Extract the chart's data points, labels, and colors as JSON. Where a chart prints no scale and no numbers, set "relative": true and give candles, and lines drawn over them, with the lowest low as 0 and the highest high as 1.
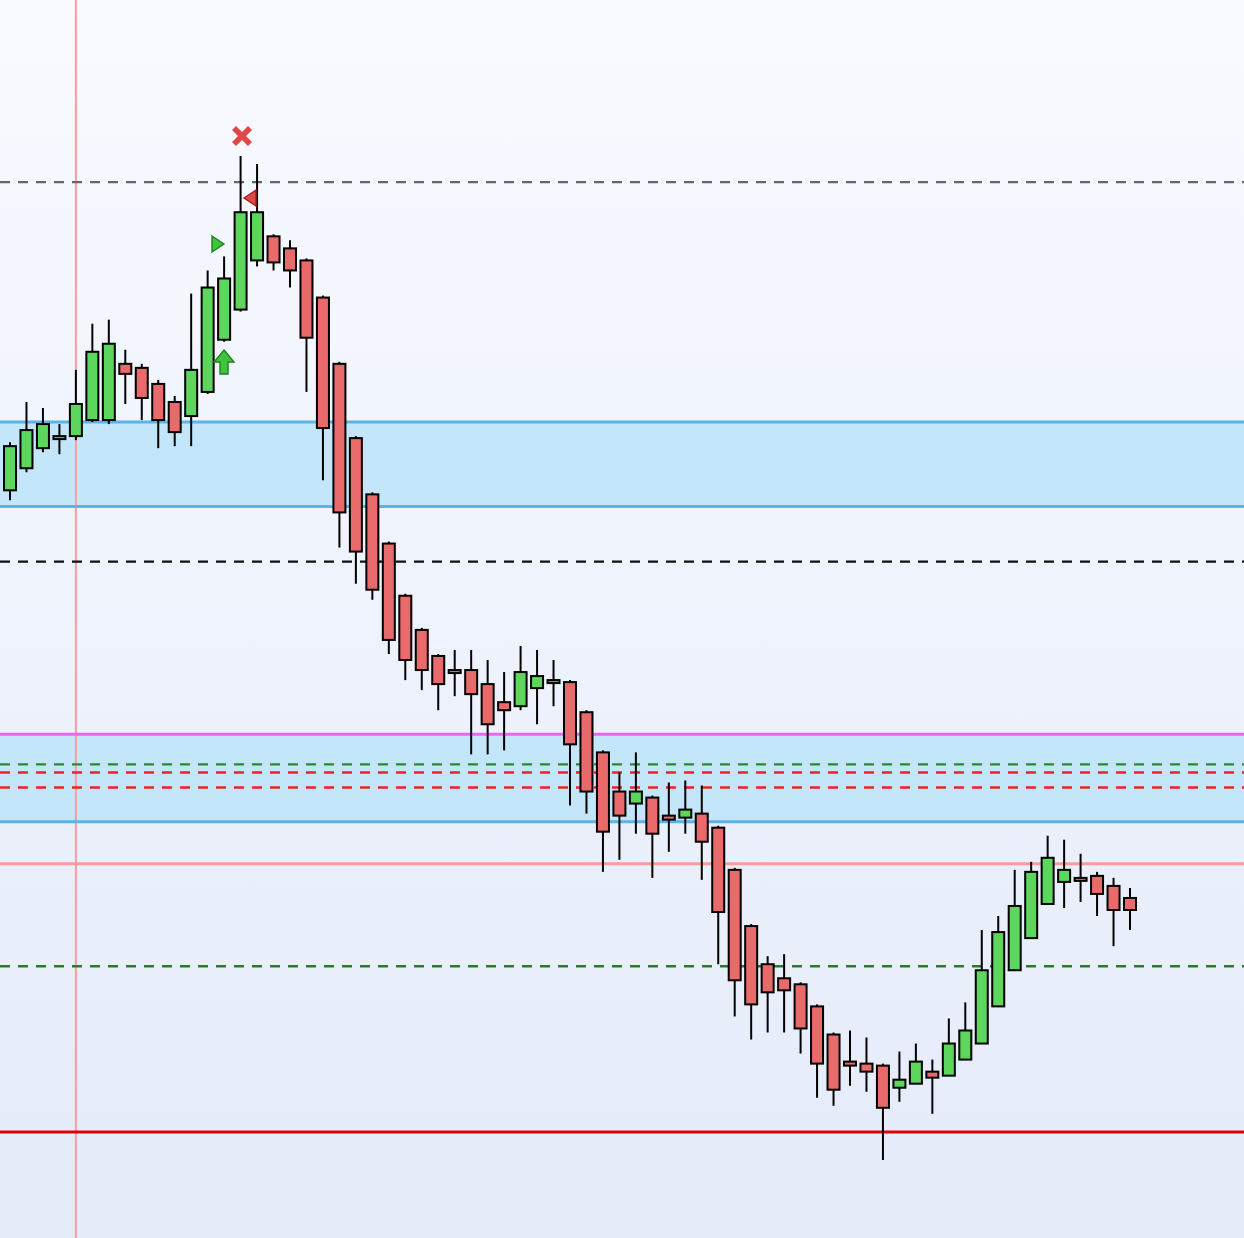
{
  "chart_data": {
    "type": "candlestick",
    "relative": true,
    "categories": [
      null,
      null,
      null,
      null,
      null,
      null,
      null,
      null,
      null,
      null,
      null,
      null,
      null,
      null,
      null,
      null,
      null,
      null,
      null,
      null,
      null,
      null,
      null,
      null,
      null,
      null,
      null,
      null,
      null,
      null,
      null,
      null,
      null,
      null,
      null,
      null,
      null,
      null,
      null,
      null,
      null,
      null,
      null,
      null,
      null,
      null,
      null,
      null,
      null,
      null,
      null,
      null,
      null,
      null,
      null,
      null,
      null,
      null,
      null,
      null,
      null,
      null,
      null,
      null,
      null,
      null,
      null,
      null,
      null
    ],
    "ohlc": [
      [
        0.667,
        0.715,
        0.657,
        0.711
      ],
      [
        0.689,
        0.755,
        0.685,
        0.727
      ],
      [
        0.709,
        0.749,
        0.705,
        0.733
      ],
      [
        0.721,
        0.733,
        0.703,
        0.721
      ],
      [
        0.721,
        0.787,
        0.717,
        0.753
      ],
      [
        0.737,
        0.833,
        0.735,
        0.805
      ],
      [
        0.737,
        0.837,
        0.733,
        0.813
      ],
      [
        0.793,
        0.807,
        0.753,
        0.783
      ],
      [
        0.789,
        0.793,
        0.737,
        0.759
      ],
      [
        0.773,
        0.777,
        0.709,
        0.737
      ],
      [
        0.755,
        0.761,
        0.711,
        0.725
      ],
      [
        0.741,
        0.863,
        0.711,
        0.787
      ],
      [
        0.765,
        0.886,
        0.763,
        0.869
      ],
      [
        0.817,
        0.9,
        0.815,
        0.878
      ],
      [
        0.847,
        1,
        0.845,
        0.944
      ],
      [
        0.896,
        0.992,
        0.89,
        0.944
      ],
      [
        0.92,
        0.922,
        0.886,
        0.894
      ],
      [
        0.908,
        0.916,
        0.869,
        0.886
      ],
      [
        0.896,
        0.898,
        0.765,
        0.819
      ],
      [
        0.859,
        0.861,
        0.677,
        0.729
      ],
      [
        0.793,
        0.795,
        0.61,
        0.645
      ],
      [
        0.719,
        0.721,
        0.574,
        0.606
      ],
      [
        0.663,
        0.665,
        0.558,
        0.568
      ],
      [
        0.614,
        0.616,
        0.504,
        0.518
      ],
      [
        0.562,
        0.564,
        0.478,
        0.498
      ],
      [
        0.528,
        0.53,
        0.468,
        0.488
      ],
      [
        0.502,
        0.504,
        0.448,
        0.474
      ],
      [
        0.488,
        0.508,
        0.462,
        0.486
      ],
      [
        0.488,
        0.508,
        0.404,
        0.464
      ],
      [
        0.474,
        0.498,
        0.404,
        0.434
      ],
      [
        0.456,
        0.486,
        0.408,
        0.448
      ],
      [
        0.452,
        0.512,
        0.448,
        0.486
      ],
      [
        0.47,
        0.508,
        0.434,
        0.482
      ],
      [
        0.476,
        0.498,
        0.452,
        0.478
      ],
      [
        0.476,
        0.478,
        0.353,
        0.414
      ],
      [
        0.446,
        0.448,
        0.345,
        0.367
      ],
      [
        0.406,
        0.408,
        0.287,
        0.327
      ],
      [
        0.367,
        0.386,
        0.299,
        0.343
      ],
      [
        0.355,
        0.406,
        0.325,
        0.367
      ],
      [
        0.361,
        0.363,
        0.281,
        0.325
      ],
      [
        0.343,
        0.376,
        0.307,
        0.339
      ],
      [
        0.341,
        0.378,
        0.325,
        0.349
      ],
      [
        0.345,
        0.373,
        0.279,
        0.317
      ],
      [
        0.331,
        0.333,
        0.195,
        0.247
      ],
      [
        0.289,
        0.291,
        0.143,
        0.179
      ],
      [
        0.233,
        0.235,
        0.12,
        0.155
      ],
      [
        0.195,
        0.203,
        0.127,
        0.167
      ],
      [
        0.181,
        0.205,
        0.127,
        0.169
      ],
      [
        0.175,
        0.177,
        0.106,
        0.131
      ],
      [
        0.153,
        0.155,
        0.062,
        0.096
      ],
      [
        0.125,
        0.127,
        0.054,
        0.07
      ],
      [
        0.098,
        0.129,
        0.074,
        0.094
      ],
      [
        0.096,
        0.122,
        0.068,
        0.088
      ],
      [
        0.094,
        0.096,
        0,
        0.052
      ],
      [
        0.072,
        0.108,
        0.058,
        0.08
      ],
      [
        0.076,
        0.116,
        0.076,
        0.098
      ],
      [
        0.088,
        0.1,
        0.046,
        0.082
      ],
      [
        0.084,
        0.141,
        0.084,
        0.116
      ],
      [
        0.1,
        0.157,
        0.1,
        0.129
      ],
      [
        0.116,
        0.229,
        0.116,
        0.189
      ],
      [
        0.153,
        0.243,
        0.153,
        0.227
      ],
      [
        0.189,
        0.289,
        0.189,
        0.253
      ],
      [
        0.221,
        0.297,
        0.221,
        0.287
      ],
      [
        0.255,
        0.323,
        0.255,
        0.301
      ],
      [
        0.277,
        0.319,
        0.251,
        0.289
      ],
      [
        0.281,
        0.305,
        0.257,
        0.279
      ],
      [
        0.283,
        0.287,
        0.243,
        0.265
      ],
      [
        0.273,
        0.281,
        0.213,
        0.249
      ],
      [
        0.261,
        0.271,
        0.229,
        0.249
      ]
    ],
    "colors": [
      "#5cd65c",
      "#5cd65c",
      "#5cd65c",
      "#5cd65c",
      "#5cd65c",
      "#5cd65c",
      "#5cd65c",
      "#e86a6a",
      "#e86a6a",
      "#e86a6a",
      "#e86a6a",
      "#5cd65c",
      "#5cd65c",
      "#5cd65c",
      "#5cd65c",
      "#5cd65c",
      "#e86a6a",
      "#e86a6a",
      "#e86a6a",
      "#e86a6a",
      "#e86a6a",
      "#e86a6a",
      "#e86a6a",
      "#e86a6a",
      "#e86a6a",
      "#e86a6a",
      "#e86a6a",
      "#e86a6a",
      "#e86a6a",
      "#e86a6a",
      "#e86a6a",
      "#5cd65c",
      "#5cd65c",
      "#e86a6a",
      "#e86a6a",
      "#e86a6a",
      "#e86a6a",
      "#e86a6a",
      "#5cd65c",
      "#e86a6a",
      "#e86a6a",
      "#5cd65c",
      "#e86a6a",
      "#e86a6a",
      "#e86a6a",
      "#e86a6a",
      "#e86a6a",
      "#e86a6a",
      "#e86a6a",
      "#e86a6a",
      "#e86a6a",
      "#e86a6a",
      "#e86a6a",
      "#e86a6a",
      "#5cd65c",
      "#5cd65c",
      "#e86a6a",
      "#5cd65c",
      "#5cd65c",
      "#5cd65c",
      "#5cd65c",
      "#5cd65c",
      "#5cd65c",
      "#5cd65c",
      "#5cd65c",
      "#e86a6a",
      "#e86a6a",
      "#e86a6a",
      "#e86a6a"
    ],
    "bands": [
      {
        "axis": "y",
        "from": 0.651,
        "to": 0.735,
        "color": "#c4e6fb"
      },
      {
        "axis": "y",
        "from": 0.337,
        "to": 0.424,
        "color": "#c4e6fb"
      }
    ],
    "ref_lines": [
      {
        "axis": "y",
        "value": 0.974,
        "color": "#666666",
        "line_style": "dashed"
      },
      {
        "axis": "y",
        "value": 0.735,
        "color": "#5ab4e8",
        "line_style": "solid"
      },
      {
        "axis": "y",
        "value": 0.651,
        "color": "#5ab4e8",
        "line_style": "solid"
      },
      {
        "axis": "y",
        "value": 0.337,
        "color": "#5ab4e8",
        "line_style": "solid"
      },
      {
        "axis": "y",
        "value": 0.596,
        "color": "#111111",
        "line_style": "dashed"
      },
      {
        "axis": "y",
        "value": 0.424,
        "color": "#ee66ee",
        "line_style": "solid"
      },
      {
        "axis": "y",
        "value": 0.394,
        "color": "#2a8a2a",
        "line_style": "dashed"
      },
      {
        "axis": "y",
        "value": 0.386,
        "color": "#ee2222",
        "line_style": "dashed"
      },
      {
        "axis": "y",
        "value": 0.371,
        "color": "#ee2222",
        "line_style": "dashed"
      },
      {
        "axis": "y",
        "value": 0.295,
        "color": "#ff9a9a",
        "line_style": "solid"
      },
      {
        "axis": "y",
        "value": 0.193,
        "color": "#2a7a2a",
        "line_style": "dashed"
      },
      {
        "axis": "y",
        "value": 0.028,
        "color": "#e00000",
        "line_style": "solid"
      }
    ]
  }
}
